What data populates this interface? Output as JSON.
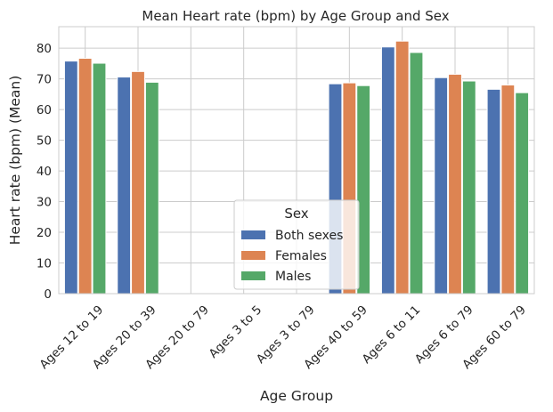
{
  "chart_data": {
    "type": "bar",
    "title": "Mean Heart rate (bpm) by Age Group and Sex",
    "xlabel": "Age Group",
    "ylabel": "Heart rate (bpm) (Mean)",
    "ylim": [
      0,
      87
    ],
    "yticks": [
      0,
      10,
      20,
      30,
      40,
      50,
      60,
      70,
      80
    ],
    "grid": true,
    "legend_title": "Sex",
    "legend_position": "lower-center",
    "categories": [
      "Ages 12 to 19",
      "Ages 20 to 39",
      "Ages 20 to 79",
      "Ages 3 to 5",
      "Ages 3 to 79",
      "Ages 40 to 59",
      "Ages 6 to 11",
      "Ages 6 to 79",
      "Ages 60 to 79"
    ],
    "series": [
      {
        "name": "Both sexes",
        "color": "#4c72b0",
        "values": [
          75.8,
          70.6,
          null,
          null,
          null,
          68.4,
          80.4,
          70.4,
          66.6
        ]
      },
      {
        "name": "Females",
        "color": "#dd8452",
        "values": [
          76.7,
          72.4,
          null,
          null,
          null,
          68.7,
          82.3,
          71.5,
          68.0
        ]
      },
      {
        "name": "Males",
        "color": "#55a868",
        "values": [
          75.1,
          68.9,
          null,
          null,
          null,
          67.8,
          78.6,
          69.3,
          65.5
        ]
      }
    ]
  }
}
